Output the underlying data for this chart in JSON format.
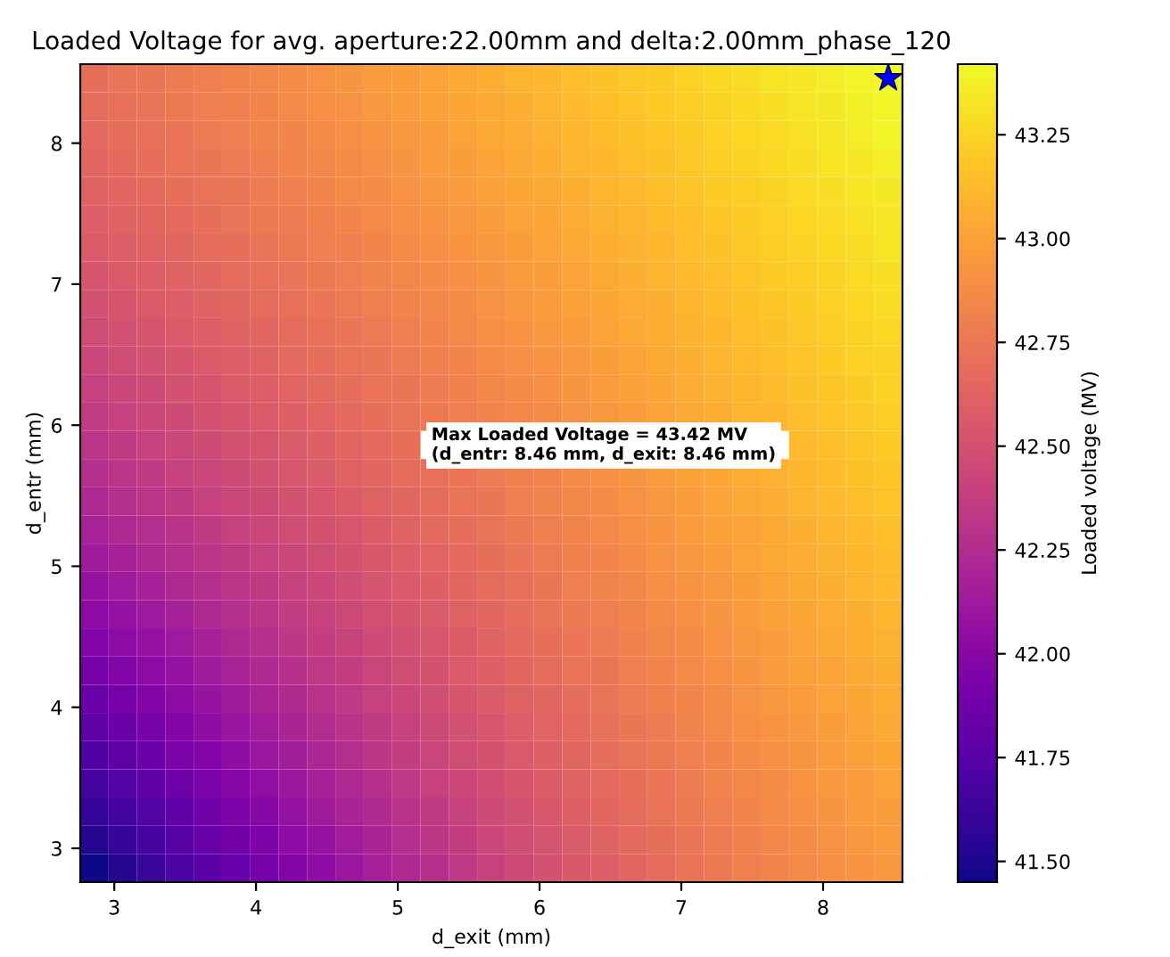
{
  "chart_data": {
    "type": "heatmap",
    "title": "Loaded Voltage for avg. aperture:22.00mm and delta:2.00mm_phase_120",
    "xlabel": "d_exit (mm)",
    "ylabel": "d_entr (mm)",
    "clabel": "Loaded voltage (MV)",
    "annotations": [
      "Max Loaded Voltage = 43.42 MV\n(d_entr: 8.46 mm, d_exit: 8.46 mm)"
    ],
    "x": [
      2.86,
      3.06,
      3.26,
      3.46,
      3.66,
      3.86,
      4.06,
      4.26,
      4.46,
      4.66,
      4.86,
      5.06,
      5.26,
      5.46,
      5.66,
      5.86,
      6.06,
      6.26,
      6.46,
      6.66,
      6.86,
      7.06,
      7.26,
      7.46,
      7.66,
      7.86,
      8.06,
      8.26,
      8.46
    ],
    "y": [
      8.46,
      8.26,
      8.06,
      7.86,
      7.66,
      7.46,
      7.26,
      7.06,
      6.86,
      6.66,
      6.46,
      6.26,
      6.06,
      5.86,
      5.66,
      5.46,
      5.26,
      5.06,
      4.86,
      4.66,
      4.46,
      4.26,
      4.06,
      3.86,
      3.66,
      3.46,
      3.26,
      3.06,
      2.86
    ],
    "xlim": [
      2.76,
      8.56
    ],
    "ylim": [
      2.76,
      8.56
    ],
    "xticks": [
      3,
      4,
      5,
      6,
      7,
      8
    ],
    "yticks": [
      3,
      4,
      5,
      6,
      7,
      8
    ],
    "clim": [
      41.45,
      43.42
    ],
    "cticks": [
      {
        "value": 41.5,
        "label": "41.50"
      },
      {
        "value": 41.75,
        "label": "41.75"
      },
      {
        "value": 42.0,
        "label": "42.00"
      },
      {
        "value": 42.25,
        "label": "42.25"
      },
      {
        "value": 42.5,
        "label": "42.50"
      },
      {
        "value": 42.75,
        "label": "42.75"
      },
      {
        "value": 43.0,
        "label": "43.00"
      },
      {
        "value": 43.25,
        "label": "43.25"
      }
    ],
    "series": [
      {
        "type": "scatter",
        "x": [
          8.46
        ],
        "values": [
          8.46
        ],
        "color": "#0000ff",
        "marker": "star"
      }
    ],
    "cells": [
      [
        42.7,
        42.73,
        42.75,
        42.78,
        42.8,
        42.83,
        42.85,
        42.88,
        42.91,
        42.93,
        42.96,
        42.98,
        43.01,
        43.03,
        43.06,
        43.09,
        43.11,
        43.14,
        43.16,
        43.19,
        43.21,
        43.24,
        43.27,
        43.29,
        43.32,
        43.34,
        43.37,
        43.39,
        43.42
      ],
      [
        42.68,
        42.71,
        42.73,
        42.76,
        42.79,
        42.81,
        42.84,
        42.86,
        42.89,
        42.91,
        42.94,
        42.97,
        42.99,
        43.02,
        43.04,
        43.07,
        43.09,
        43.12,
        43.15,
        43.17,
        43.2,
        43.22,
        43.25,
        43.27,
        43.3,
        43.33,
        43.35,
        43.38,
        43.4
      ],
      [
        42.66,
        42.69,
        42.71,
        42.74,
        42.77,
        42.79,
        42.82,
        42.84,
        42.87,
        42.9,
        42.92,
        42.95,
        42.97,
        43.0,
        43.03,
        43.05,
        43.08,
        43.1,
        43.13,
        43.16,
        43.18,
        43.21,
        43.23,
        43.26,
        43.28,
        43.31,
        43.34,
        43.36,
        43.39
      ],
      [
        42.64,
        42.67,
        42.69,
        42.72,
        42.75,
        42.77,
        42.8,
        42.83,
        42.85,
        42.88,
        42.9,
        42.93,
        42.96,
        42.98,
        43.01,
        43.03,
        43.06,
        43.09,
        43.11,
        43.14,
        43.16,
        43.19,
        43.22,
        43.24,
        43.27,
        43.29,
        43.32,
        43.34,
        43.37
      ],
      [
        42.62,
        42.64,
        42.67,
        42.7,
        42.72,
        42.75,
        42.78,
        42.8,
        42.83,
        42.86,
        42.88,
        42.91,
        42.94,
        42.96,
        42.99,
        43.02,
        43.04,
        43.07,
        43.09,
        43.12,
        43.15,
        43.17,
        43.2,
        43.22,
        43.25,
        43.28,
        43.3,
        43.33,
        43.35
      ],
      [
        42.59,
        42.62,
        42.65,
        42.67,
        42.7,
        42.73,
        42.76,
        42.78,
        42.81,
        42.84,
        42.86,
        42.89,
        42.92,
        42.94,
        42.97,
        43.0,
        43.02,
        43.05,
        43.08,
        43.1,
        43.13,
        43.15,
        43.18,
        43.21,
        43.23,
        43.26,
        43.28,
        43.31,
        43.34
      ],
      [
        42.56,
        42.59,
        42.62,
        42.65,
        42.68,
        42.7,
        42.73,
        42.76,
        42.79,
        42.81,
        42.84,
        42.87,
        42.9,
        42.92,
        42.95,
        42.98,
        43.0,
        43.03,
        43.06,
        43.08,
        43.11,
        43.14,
        43.16,
        43.19,
        43.22,
        43.24,
        43.27,
        43.29,
        43.32
      ],
      [
        42.53,
        42.56,
        42.59,
        42.62,
        42.65,
        42.68,
        42.71,
        42.73,
        42.76,
        42.79,
        42.82,
        42.85,
        42.87,
        42.9,
        42.93,
        42.96,
        42.98,
        43.01,
        43.04,
        43.07,
        43.09,
        43.12,
        43.15,
        43.17,
        43.2,
        43.22,
        43.25,
        43.28,
        43.3
      ],
      [
        42.5,
        42.53,
        42.56,
        42.59,
        42.62,
        42.65,
        42.68,
        42.71,
        42.74,
        42.77,
        42.8,
        42.83,
        42.85,
        42.88,
        42.91,
        42.94,
        42.97,
        42.99,
        43.02,
        43.05,
        43.07,
        43.1,
        43.13,
        43.16,
        43.18,
        43.21,
        43.23,
        43.26,
        43.29
      ],
      [
        42.47,
        42.5,
        42.53,
        42.56,
        42.59,
        42.62,
        42.65,
        42.68,
        42.71,
        42.74,
        42.77,
        42.8,
        42.83,
        42.86,
        42.89,
        42.92,
        42.95,
        42.97,
        43.0,
        43.03,
        43.06,
        43.08,
        43.11,
        43.14,
        43.16,
        43.19,
        43.22,
        43.24,
        43.27
      ],
      [
        42.43,
        42.47,
        42.5,
        42.53,
        42.56,
        42.59,
        42.62,
        42.66,
        42.69,
        42.72,
        42.75,
        42.78,
        42.81,
        42.84,
        42.87,
        42.9,
        42.92,
        42.95,
        42.98,
        43.01,
        43.04,
        43.07,
        43.09,
        43.12,
        43.15,
        43.17,
        43.2,
        43.23,
        43.25
      ],
      [
        42.39,
        42.43,
        42.46,
        42.5,
        42.53,
        42.56,
        42.59,
        42.63,
        42.66,
        42.69,
        42.72,
        42.75,
        42.78,
        42.81,
        42.85,
        42.88,
        42.9,
        42.93,
        42.96,
        42.99,
        43.02,
        43.05,
        43.08,
        43.1,
        43.13,
        43.16,
        43.18,
        43.21,
        43.24
      ],
      [
        42.36,
        42.39,
        42.43,
        42.46,
        42.5,
        42.53,
        42.56,
        42.6,
        42.63,
        42.66,
        42.7,
        42.73,
        42.76,
        42.79,
        42.82,
        42.85,
        42.88,
        42.91,
        42.94,
        42.97,
        43.0,
        43.03,
        43.06,
        43.09,
        43.11,
        43.14,
        43.17,
        43.19,
        43.22
      ],
      [
        42.31,
        42.35,
        42.39,
        42.43,
        42.46,
        42.5,
        42.53,
        42.57,
        42.6,
        42.64,
        42.67,
        42.7,
        null,
        null,
        null,
        null,
        null,
        null,
        null,
        null,
        null,
        null,
        null,
        null,
        null,
        43.12,
        43.15,
        43.18,
        43.2
      ],
      [
        42.27,
        42.31,
        42.35,
        42.39,
        42.42,
        42.46,
        42.5,
        42.54,
        42.57,
        42.61,
        42.64,
        42.68,
        42.71,
        42.74,
        42.78,
        42.81,
        42.84,
        42.87,
        42.9,
        42.93,
        42.96,
        42.99,
        43.02,
        43.05,
        43.08,
        43.11,
        43.13,
        43.16,
        43.18
      ],
      [
        42.22,
        42.27,
        42.31,
        42.35,
        42.39,
        42.43,
        42.46,
        42.5,
        42.54,
        42.58,
        42.61,
        42.65,
        42.68,
        42.72,
        42.75,
        42.79,
        42.82,
        42.85,
        42.88,
        42.91,
        42.94,
        42.97,
        43.0,
        43.03,
        43.06,
        43.09,
        43.12,
        43.14,
        43.17
      ],
      [
        42.18,
        42.22,
        42.26,
        42.3,
        42.35,
        42.39,
        42.43,
        42.47,
        42.51,
        42.54,
        42.58,
        42.62,
        42.66,
        42.69,
        42.73,
        42.76,
        42.8,
        42.83,
        42.86,
        42.89,
        42.92,
        42.96,
        42.99,
        43.01,
        43.04,
        43.07,
        43.1,
        43.12,
        43.15
      ],
      [
        42.13,
        42.17,
        42.22,
        42.26,
        42.31,
        42.35,
        42.39,
        42.43,
        42.47,
        42.51,
        42.55,
        42.59,
        42.63,
        42.67,
        42.7,
        42.74,
        42.77,
        42.81,
        42.84,
        42.87,
        42.91,
        42.94,
        42.97,
        43.0,
        43.03,
        43.05,
        43.08,
        43.11,
        43.13
      ],
      [
        42.08,
        42.12,
        42.17,
        42.22,
        42.26,
        42.31,
        42.35,
        42.4,
        42.44,
        42.48,
        42.52,
        42.56,
        42.6,
        42.64,
        42.68,
        42.71,
        42.75,
        42.79,
        42.82,
        42.85,
        42.89,
        42.92,
        42.95,
        42.98,
        43.01,
        43.04,
        43.07,
        43.09,
        43.12
      ],
      [
        42.02,
        42.07,
        42.12,
        42.17,
        42.22,
        42.27,
        42.31,
        42.36,
        42.4,
        42.45,
        42.49,
        42.53,
        42.57,
        42.61,
        42.65,
        42.69,
        42.73,
        42.76,
        42.8,
        42.83,
        42.87,
        42.9,
        42.93,
        42.96,
        42.99,
        43.02,
        43.05,
        43.07,
        43.1
      ],
      [
        41.97,
        42.02,
        42.07,
        42.12,
        42.17,
        42.22,
        42.27,
        42.32,
        42.37,
        42.41,
        42.46,
        42.5,
        42.54,
        42.58,
        42.62,
        42.66,
        42.7,
        42.74,
        42.78,
        42.81,
        42.85,
        42.88,
        42.91,
        42.94,
        42.97,
        43.0,
        43.03,
        43.06,
        43.08
      ],
      [
        41.91,
        41.96,
        42.02,
        42.07,
        42.13,
        42.18,
        42.23,
        42.28,
        42.33,
        42.38,
        42.42,
        42.47,
        42.51,
        42.56,
        42.6,
        42.64,
        42.68,
        42.72,
        42.75,
        42.79,
        42.83,
        42.86,
        42.89,
        42.92,
        42.96,
        42.99,
        43.01,
        43.04,
        43.07
      ],
      [
        41.85,
        41.91,
        41.97,
        42.02,
        42.08,
        42.13,
        42.19,
        42.24,
        42.29,
        42.34,
        42.39,
        42.44,
        42.48,
        42.53,
        42.57,
        42.61,
        42.65,
        42.69,
        42.73,
        42.77,
        42.81,
        42.84,
        42.87,
        42.91,
        42.94,
        42.97,
        43.0,
        43.02,
        43.05
      ],
      [
        41.79,
        41.85,
        41.91,
        41.97,
        42.03,
        42.09,
        42.14,
        42.2,
        42.25,
        42.3,
        42.35,
        42.4,
        42.45,
        42.5,
        42.54,
        42.59,
        42.63,
        42.67,
        42.71,
        42.75,
        42.78,
        42.82,
        42.86,
        42.89,
        42.92,
        42.95,
        42.98,
        43.01,
        43.03
      ],
      [
        41.72,
        41.79,
        41.85,
        41.92,
        41.98,
        42.04,
        42.1,
        42.15,
        42.21,
        42.26,
        42.32,
        42.37,
        42.42,
        42.47,
        42.51,
        42.56,
        42.6,
        42.65,
        42.69,
        42.73,
        42.76,
        42.8,
        42.84,
        42.87,
        42.9,
        42.93,
        42.96,
        42.99,
        43.02
      ],
      [
        41.66,
        41.73,
        41.79,
        41.86,
        41.93,
        41.99,
        42.05,
        42.11,
        42.17,
        42.22,
        42.28,
        42.33,
        42.39,
        42.44,
        42.48,
        42.53,
        42.58,
        42.62,
        42.66,
        42.7,
        42.74,
        42.78,
        42.82,
        42.85,
        42.88,
        42.92,
        42.95,
        42.97,
        43.0
      ],
      [
        41.59,
        41.66,
        41.73,
        41.8,
        41.87,
        41.94,
        42.0,
        42.07,
        42.13,
        42.19,
        42.24,
        42.3,
        42.35,
        42.4,
        42.46,
        42.5,
        42.55,
        42.6,
        42.64,
        42.68,
        42.72,
        42.76,
        42.8,
        42.83,
        42.87,
        42.9,
        42.93,
        42.96,
        42.98
      ],
      [
        41.52,
        41.6,
        41.67,
        41.75,
        41.82,
        41.89,
        41.95,
        42.02,
        42.08,
        42.14,
        42.2,
        42.26,
        42.32,
        42.37,
        42.43,
        42.48,
        42.52,
        42.57,
        42.62,
        42.66,
        42.7,
        42.74,
        42.78,
        42.81,
        42.85,
        42.88,
        42.91,
        42.94,
        42.97
      ],
      [
        41.45,
        41.53,
        41.61,
        41.69,
        41.76,
        41.83,
        41.9,
        41.97,
        42.04,
        42.1,
        42.16,
        42.23,
        42.28,
        42.34,
        42.4,
        42.45,
        42.5,
        42.55,
        42.59,
        42.64,
        42.68,
        42.72,
        42.76,
        42.8,
        42.83,
        42.86,
        42.9,
        42.92,
        42.95
      ]
    ]
  }
}
